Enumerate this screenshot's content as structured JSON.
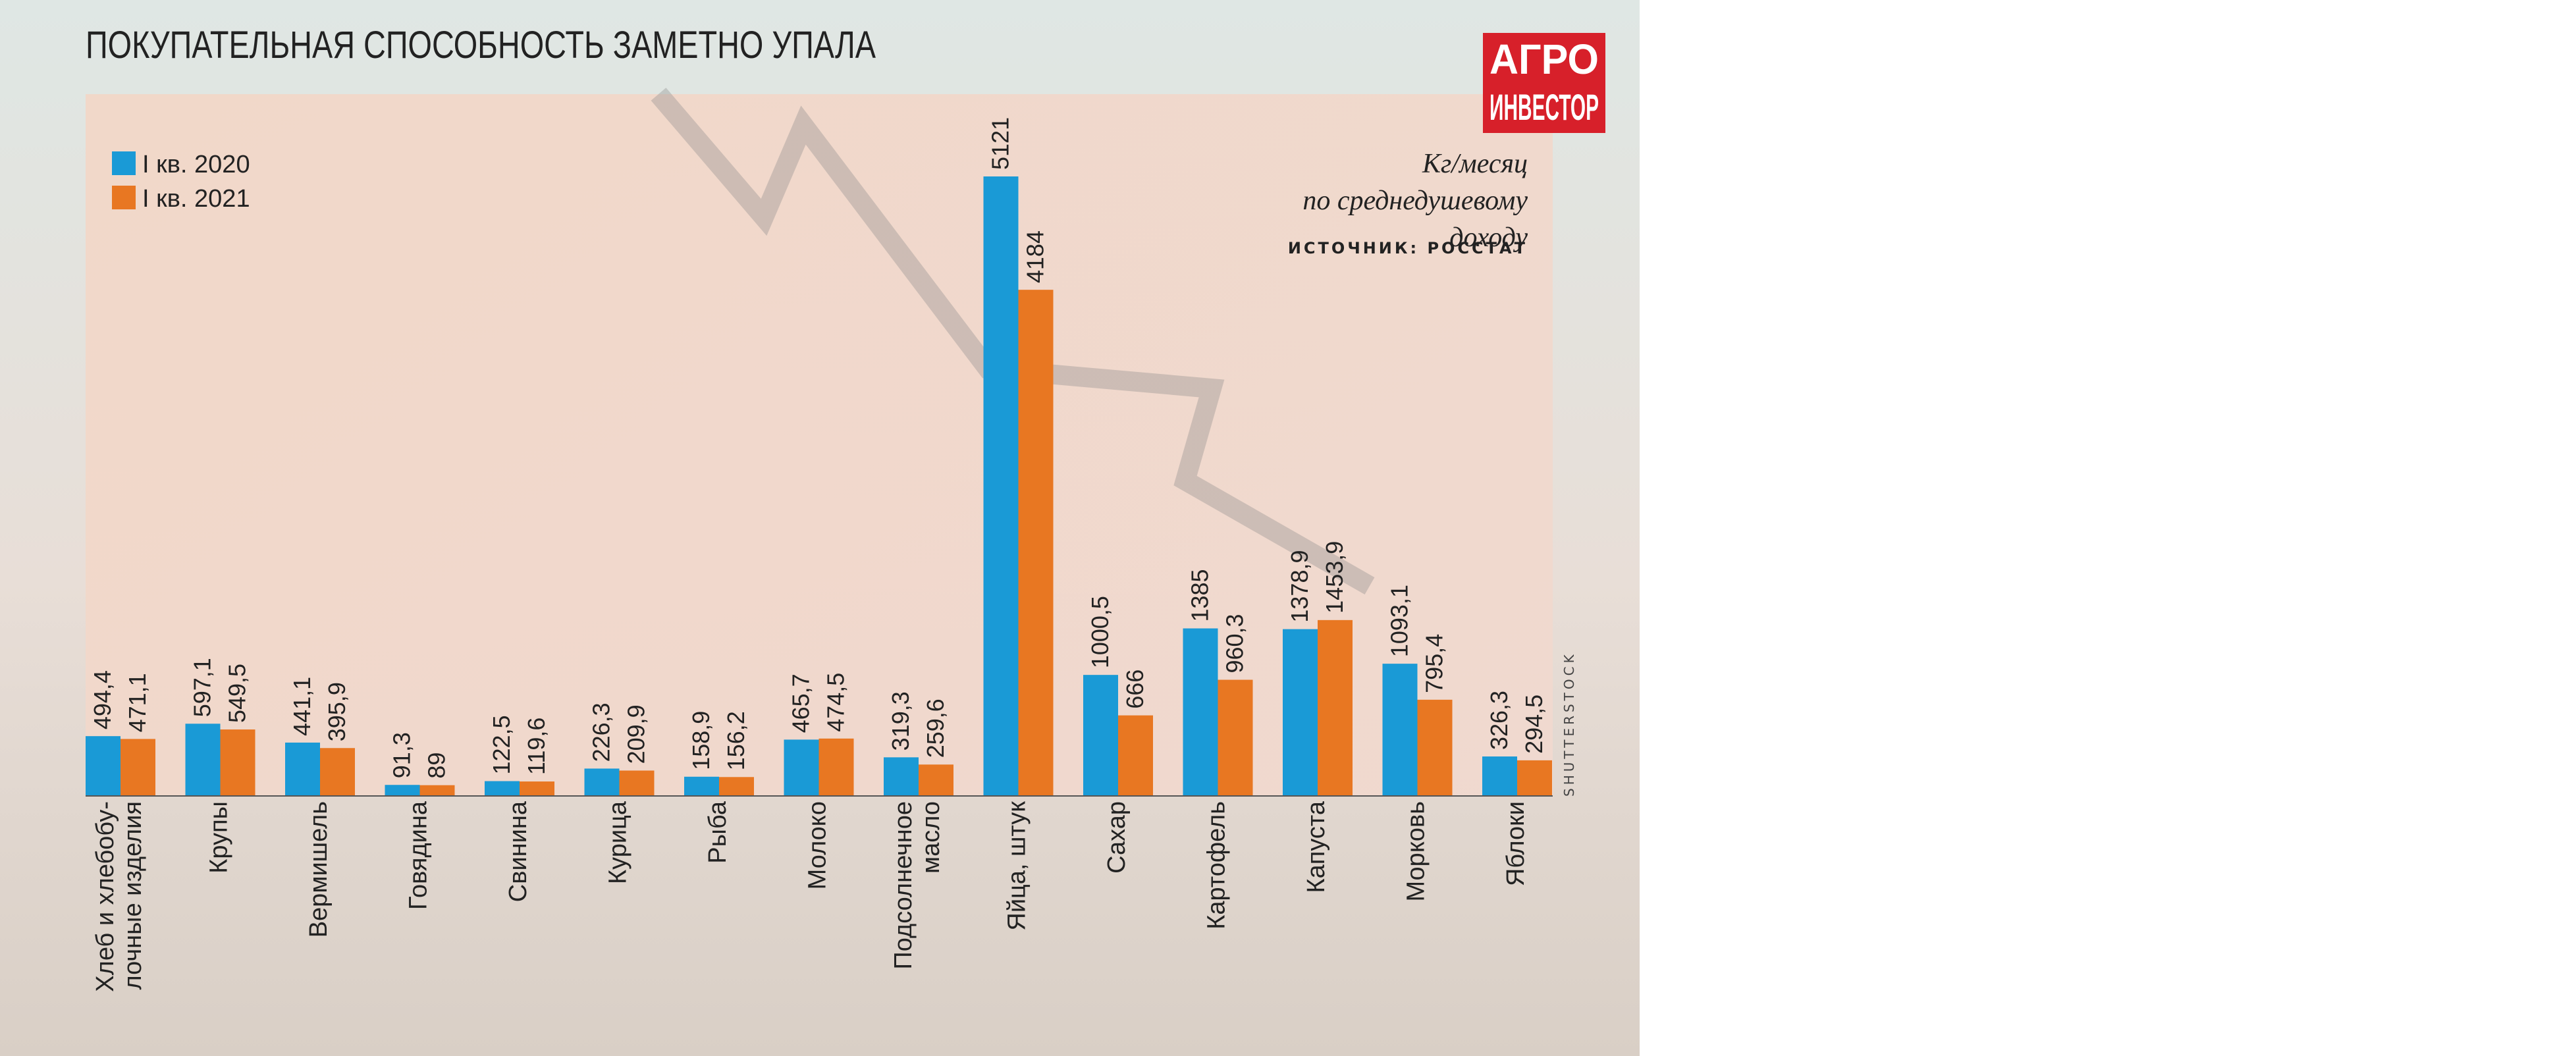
{
  "chart_data": {
    "type": "bar",
    "title": "ПОКУПАТЕЛЬНАЯ СПОСОБНОСТЬ ЗАМЕТНО УПАЛА",
    "logo": [
      "АГРО",
      "ИНВЕСТОР"
    ],
    "note": [
      "Кг/месяц",
      "по среднедушевому",
      "доходу"
    ],
    "source": "ИСТОЧНИК: РОССТАТ",
    "credit": "SHUTTERSTOCK",
    "categories": [
      "Хлеб и хлебобу-\nлочные изделия",
      "Крупы",
      "Вермишель",
      "Говядина",
      "Свинина",
      "Курица",
      "Рыба",
      "Молоко",
      "Подсолнечное\nмасло",
      "Яйца, штук",
      "Сахар",
      "Картофель",
      "Капуста",
      "Морковь",
      "Яблоки"
    ],
    "series": [
      {
        "name": "I кв. 2020",
        "color": "#1a9ad6",
        "values": [
          494.4,
          597.1,
          441.1,
          91.3,
          122.5,
          226.3,
          158.9,
          465.7,
          319.3,
          5121,
          1000.5,
          1385,
          1378.9,
          1093.1,
          326.3
        ],
        "value_labels": [
          "494,4",
          "597,1",
          "441,1",
          "91,3",
          "122,5",
          "226,3",
          "158,9",
          "465,7",
          "319,3",
          "5121",
          "1000,5",
          "1385",
          "1378,9",
          "1093,1",
          "326,3"
        ]
      },
      {
        "name": "I кв. 2021",
        "color": "#e87722",
        "values": [
          471.1,
          549.5,
          395.9,
          89,
          119.6,
          209.9,
          156.2,
          474.5,
          259.6,
          4184,
          666,
          960.3,
          1453.9,
          795.4,
          294.5
        ],
        "value_labels": [
          "471,1",
          "549,5",
          "395,9",
          "89",
          "119,6",
          "209,9",
          "156,2",
          "474,5",
          "259,6",
          "4184",
          "666",
          "960,3",
          "1453,9",
          "795,4",
          "294,5"
        ]
      }
    ]
  }
}
